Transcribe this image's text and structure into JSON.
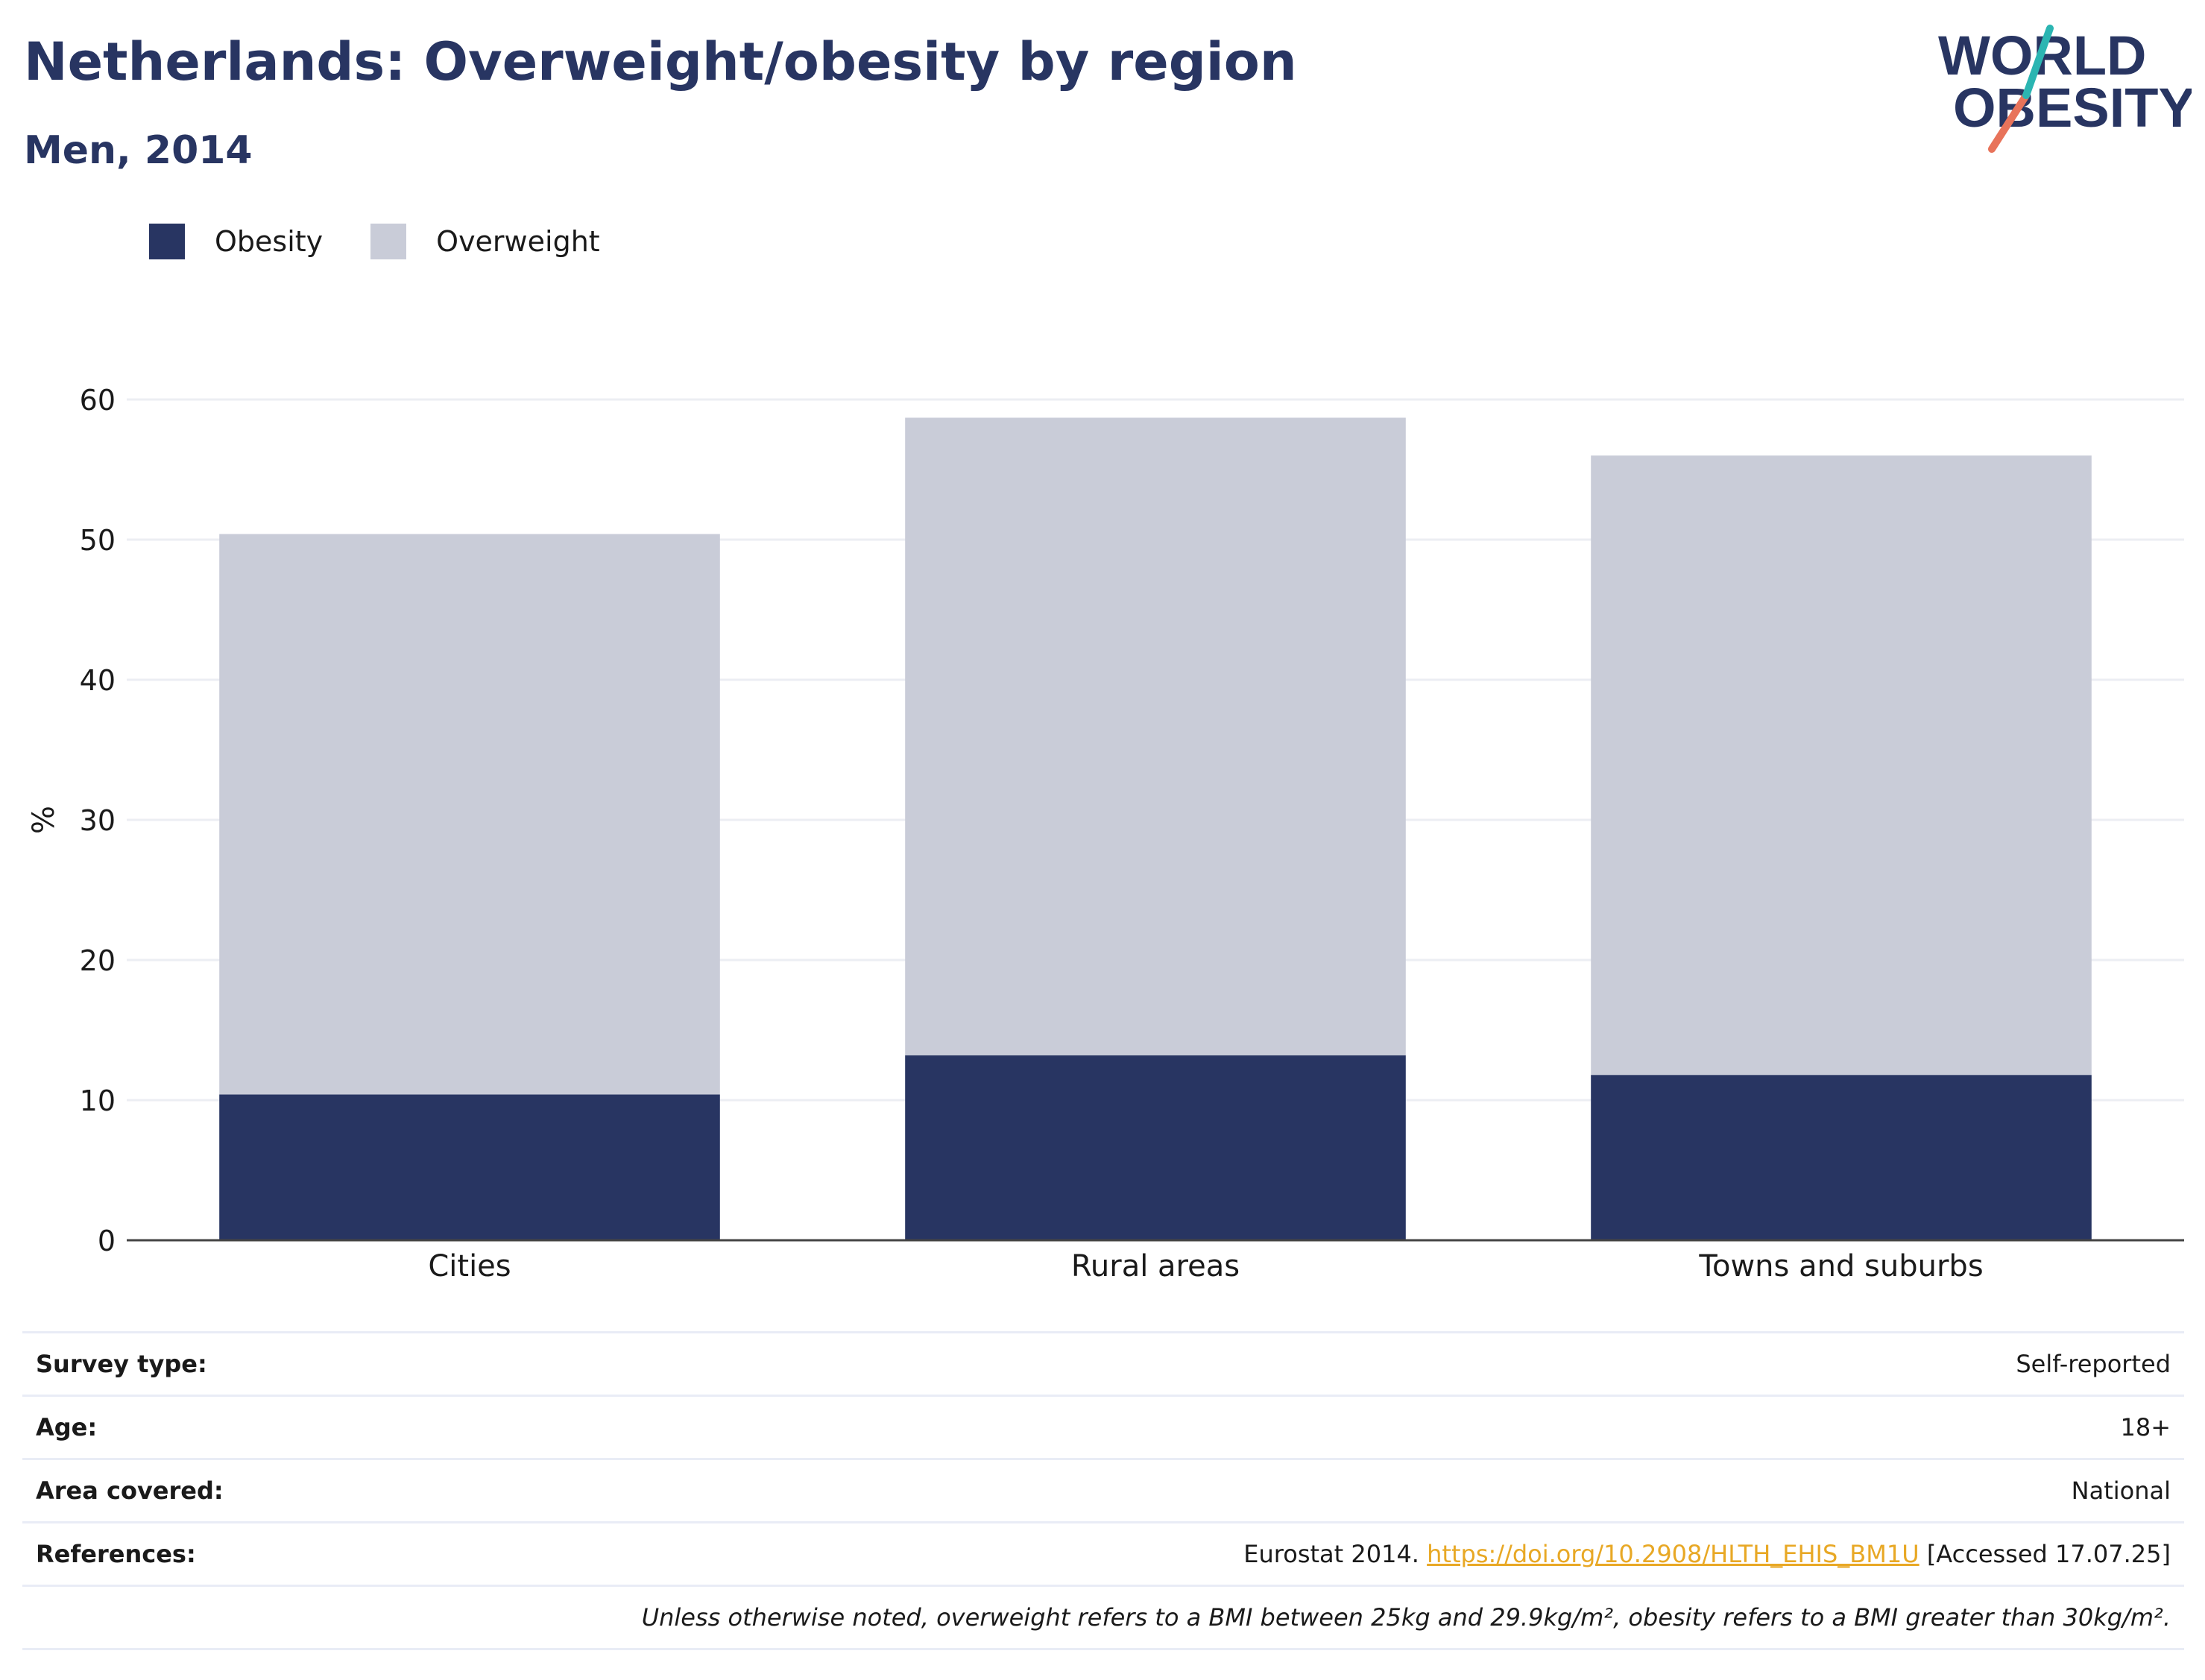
{
  "header": {
    "title": "Netherlands: Overweight/obesity by region",
    "subtitle": "Men, 2014",
    "logo_line1": "WORLD",
    "logo_line2": "OBESITY"
  },
  "legend": [
    {
      "label": "Obesity",
      "color": "#283562"
    },
    {
      "label": "Overweight",
      "color": "#c9ccd8"
    }
  ],
  "chart_data": {
    "type": "bar",
    "stacked": true,
    "categories": [
      "Cities",
      "Rural areas",
      "Towns and suburbs"
    ],
    "series": [
      {
        "name": "Obesity",
        "color": "#283562",
        "values": [
          10.4,
          13.2,
          11.8
        ]
      },
      {
        "name": "Overweight",
        "color": "#c9ccd8",
        "values": [
          40.0,
          45.5,
          44.2
        ]
      }
    ],
    "ylabel": "%",
    "ylim": [
      0,
      60
    ],
    "yticks": [
      "0",
      "10",
      "20",
      "30",
      "40",
      "50",
      "60"
    ],
    "grid": true,
    "legend_position": "top-left"
  },
  "meta": {
    "survey_type_label": "Survey type:",
    "survey_type_value": "Self-reported",
    "age_label": "Age:",
    "age_value": "18+",
    "area_label": "Area covered:",
    "area_value": "National",
    "references_label": "References:",
    "references_prefix": "Eurostat 2014. ",
    "references_link": "https://doi.org/10.2908/HLTH_EHIS_BM1U",
    "references_suffix": " [Accessed 17.07.25]",
    "note": "Unless otherwise noted, overweight refers to a BMI between 25kg and 29.9kg/m², obesity refers to a BMI greater than 30kg/m²."
  }
}
